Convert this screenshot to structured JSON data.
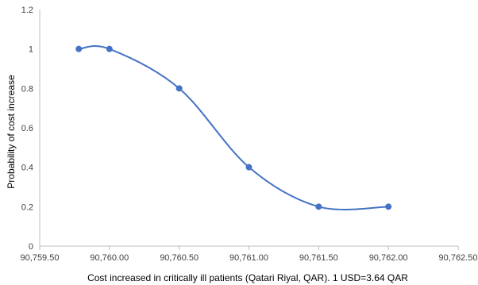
{
  "chart_data": {
    "type": "scatter",
    "title": "",
    "xlabel": "Cost increased in critically ill patients (Qatari Riyal, QAR). 1 USD=3.64 QAR",
    "ylabel": "Probability of cost increase",
    "xlim": [
      90759.5,
      90762.5
    ],
    "ylim": [
      0,
      1.2
    ],
    "x_ticks": [
      90759.5,
      90760.0,
      90760.5,
      90761.0,
      90761.5,
      90762.0,
      90762.5
    ],
    "x_tick_labels": [
      "90,759.50",
      "90,760.00",
      "90,760.50",
      "90,761.00",
      "90,761.50",
      "90,762.00",
      "90,762.50"
    ],
    "y_ticks": [
      0,
      0.2,
      0.4,
      0.6,
      0.8,
      1,
      1.2
    ],
    "y_tick_labels": [
      "0",
      "0.2",
      "0.4",
      "0.6",
      "0.8",
      "1",
      "1.2"
    ],
    "grid": false,
    "line_style": "smooth",
    "series": [
      {
        "color": "#4472C4",
        "points": [
          {
            "x": 90759.78,
            "y": 1.0
          },
          {
            "x": 90760.0,
            "y": 1.0
          },
          {
            "x": 90760.5,
            "y": 0.8
          },
          {
            "x": 90761.0,
            "y": 0.4
          },
          {
            "x": 90761.5,
            "y": 0.2
          },
          {
            "x": 90762.0,
            "y": 0.2
          }
        ]
      }
    ]
  }
}
